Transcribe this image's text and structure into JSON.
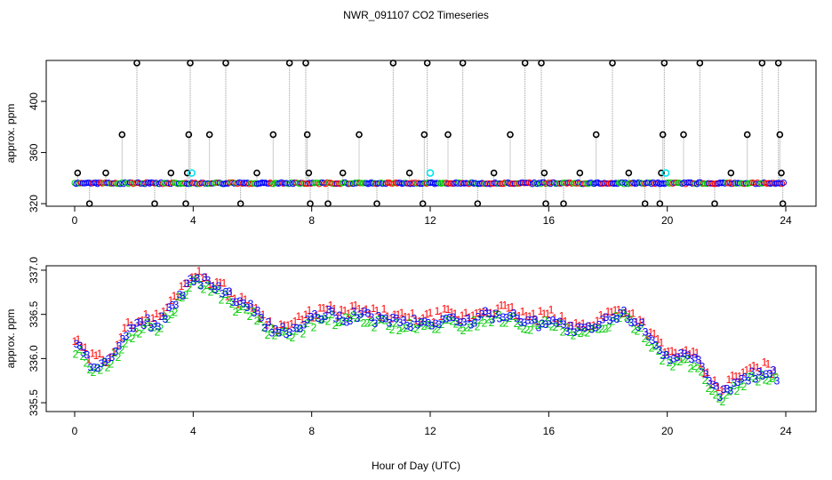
{
  "title": "NWR_091107  CO2 Timeseries",
  "xlabel": "Hour of Day (UTC)",
  "colors": {
    "series1": "#ff0000",
    "series2": "#00cc00",
    "series3": "#0000ff",
    "highlight": "#00e5ee",
    "outline": "#000000",
    "drop": "#999999"
  },
  "chart_data": [
    {
      "type": "scatter",
      "ylabel": "approx. ppm",
      "xlim": [
        0,
        24
      ],
      "ylim": [
        318,
        432
      ],
      "xticks": [
        0,
        4,
        8,
        12,
        16,
        20,
        24
      ],
      "yticks": [
        320,
        360,
        400
      ],
      "baseline": 336,
      "spikes": [
        {
          "x": 0.1,
          "y": 344
        },
        {
          "x": 0.5,
          "y": 320
        },
        {
          "x": 1.05,
          "y": 344
        },
        {
          "x": 1.6,
          "y": 374
        },
        {
          "x": 2.1,
          "y": 430
        },
        {
          "x": 2.7,
          "y": 320
        },
        {
          "x": 3.25,
          "y": 344
        },
        {
          "x": 3.75,
          "y": 320
        },
        {
          "x": 3.8,
          "y": 344
        },
        {
          "x": 3.85,
          "y": 374
        },
        {
          "x": 3.9,
          "y": 430
        },
        {
          "x": 4.55,
          "y": 374
        },
        {
          "x": 5.1,
          "y": 430
        },
        {
          "x": 5.6,
          "y": 320
        },
        {
          "x": 6.15,
          "y": 344
        },
        {
          "x": 6.7,
          "y": 374
        },
        {
          "x": 7.25,
          "y": 430
        },
        {
          "x": 7.8,
          "y": 430
        },
        {
          "x": 7.85,
          "y": 374
        },
        {
          "x": 7.9,
          "y": 344
        },
        {
          "x": 7.95,
          "y": 320
        },
        {
          "x": 8.55,
          "y": 320
        },
        {
          "x": 9.05,
          "y": 344
        },
        {
          "x": 9.6,
          "y": 374
        },
        {
          "x": 10.2,
          "y": 320
        },
        {
          "x": 10.75,
          "y": 430
        },
        {
          "x": 11.3,
          "y": 344
        },
        {
          "x": 11.75,
          "y": 320
        },
        {
          "x": 11.8,
          "y": 374
        },
        {
          "x": 11.9,
          "y": 430
        },
        {
          "x": 12.6,
          "y": 374
        },
        {
          "x": 13.1,
          "y": 430
        },
        {
          "x": 13.6,
          "y": 320
        },
        {
          "x": 14.15,
          "y": 344
        },
        {
          "x": 14.7,
          "y": 374
        },
        {
          "x": 15.2,
          "y": 430
        },
        {
          "x": 15.75,
          "y": 430
        },
        {
          "x": 15.85,
          "y": 344
        },
        {
          "x": 15.9,
          "y": 320
        },
        {
          "x": 16.5,
          "y": 320
        },
        {
          "x": 17.05,
          "y": 344
        },
        {
          "x": 17.6,
          "y": 374
        },
        {
          "x": 18.15,
          "y": 430
        },
        {
          "x": 18.7,
          "y": 344
        },
        {
          "x": 19.25,
          "y": 320
        },
        {
          "x": 19.75,
          "y": 320
        },
        {
          "x": 19.8,
          "y": 344
        },
        {
          "x": 19.85,
          "y": 374
        },
        {
          "x": 19.9,
          "y": 430
        },
        {
          "x": 20.55,
          "y": 374
        },
        {
          "x": 21.1,
          "y": 430
        },
        {
          "x": 21.6,
          "y": 320
        },
        {
          "x": 22.15,
          "y": 344
        },
        {
          "x": 22.7,
          "y": 374
        },
        {
          "x": 23.2,
          "y": 430
        },
        {
          "x": 23.75,
          "y": 430
        },
        {
          "x": 23.8,
          "y": 374
        },
        {
          "x": 23.85,
          "y": 344
        },
        {
          "x": 23.9,
          "y": 320
        }
      ],
      "highlights": [
        {
          "x": 3.95,
          "y": 344
        },
        {
          "x": 12.0,
          "y": 344
        },
        {
          "x": 19.95,
          "y": 344
        }
      ]
    },
    {
      "type": "scatter",
      "ylabel": "approx. ppm",
      "xlim": [
        0,
        24
      ],
      "ylim": [
        335.4,
        337.05
      ],
      "xticks": [
        0,
        4,
        8,
        12,
        16,
        20,
        24
      ],
      "yticks": [
        "335.5",
        "336.0",
        "336.5",
        "337.0"
      ],
      "symbols": [
        "1",
        "2",
        "3"
      ],
      "series": [
        {
          "name": "1",
          "offset": 0.1
        },
        {
          "name": "2",
          "offset": -0.08
        },
        {
          "name": "3",
          "offset": 0.0
        }
      ],
      "trend": [
        {
          "x": 0,
          "y": 336.15
        },
        {
          "x": 0.5,
          "y": 335.95
        },
        {
          "x": 1.1,
          "y": 335.95
        },
        {
          "x": 1.5,
          "y": 336.15
        },
        {
          "x": 1.8,
          "y": 336.3
        },
        {
          "x": 2.3,
          "y": 336.4
        },
        {
          "x": 2.8,
          "y": 336.4
        },
        {
          "x": 3.2,
          "y": 336.55
        },
        {
          "x": 3.6,
          "y": 336.75
        },
        {
          "x": 4.0,
          "y": 336.9
        },
        {
          "x": 4.5,
          "y": 336.85
        },
        {
          "x": 5.0,
          "y": 336.75
        },
        {
          "x": 5.5,
          "y": 336.6
        },
        {
          "x": 6.0,
          "y": 336.55
        },
        {
          "x": 6.5,
          "y": 336.35
        },
        {
          "x": 7.0,
          "y": 336.3
        },
        {
          "x": 7.5,
          "y": 336.35
        },
        {
          "x": 8.0,
          "y": 336.45
        },
        {
          "x": 8.5,
          "y": 336.5
        },
        {
          "x": 9.0,
          "y": 336.45
        },
        {
          "x": 9.5,
          "y": 336.5
        },
        {
          "x": 10.0,
          "y": 336.45
        },
        {
          "x": 10.5,
          "y": 336.45
        },
        {
          "x": 11.0,
          "y": 336.4
        },
        {
          "x": 11.5,
          "y": 336.4
        },
        {
          "x": 12.0,
          "y": 336.4
        },
        {
          "x": 12.5,
          "y": 336.45
        },
        {
          "x": 13.0,
          "y": 336.4
        },
        {
          "x": 13.5,
          "y": 336.45
        },
        {
          "x": 14.0,
          "y": 336.5
        },
        {
          "x": 14.5,
          "y": 336.5
        },
        {
          "x": 15.0,
          "y": 336.45
        },
        {
          "x": 15.5,
          "y": 336.4
        },
        {
          "x": 16.0,
          "y": 336.45
        },
        {
          "x": 16.5,
          "y": 336.35
        },
        {
          "x": 17.0,
          "y": 336.3
        },
        {
          "x": 17.5,
          "y": 336.35
        },
        {
          "x": 18.0,
          "y": 336.45
        },
        {
          "x": 18.5,
          "y": 336.5
        },
        {
          "x": 19.0,
          "y": 336.4
        },
        {
          "x": 19.5,
          "y": 336.2
        },
        {
          "x": 20.0,
          "y": 336.0
        },
        {
          "x": 20.5,
          "y": 336.0
        },
        {
          "x": 21.0,
          "y": 335.95
        },
        {
          "x": 21.4,
          "y": 335.7
        },
        {
          "x": 21.8,
          "y": 335.6
        },
        {
          "x": 22.2,
          "y": 335.7
        },
        {
          "x": 22.7,
          "y": 335.8
        },
        {
          "x": 23.2,
          "y": 335.85
        },
        {
          "x": 23.7,
          "y": 335.8
        }
      ]
    }
  ]
}
